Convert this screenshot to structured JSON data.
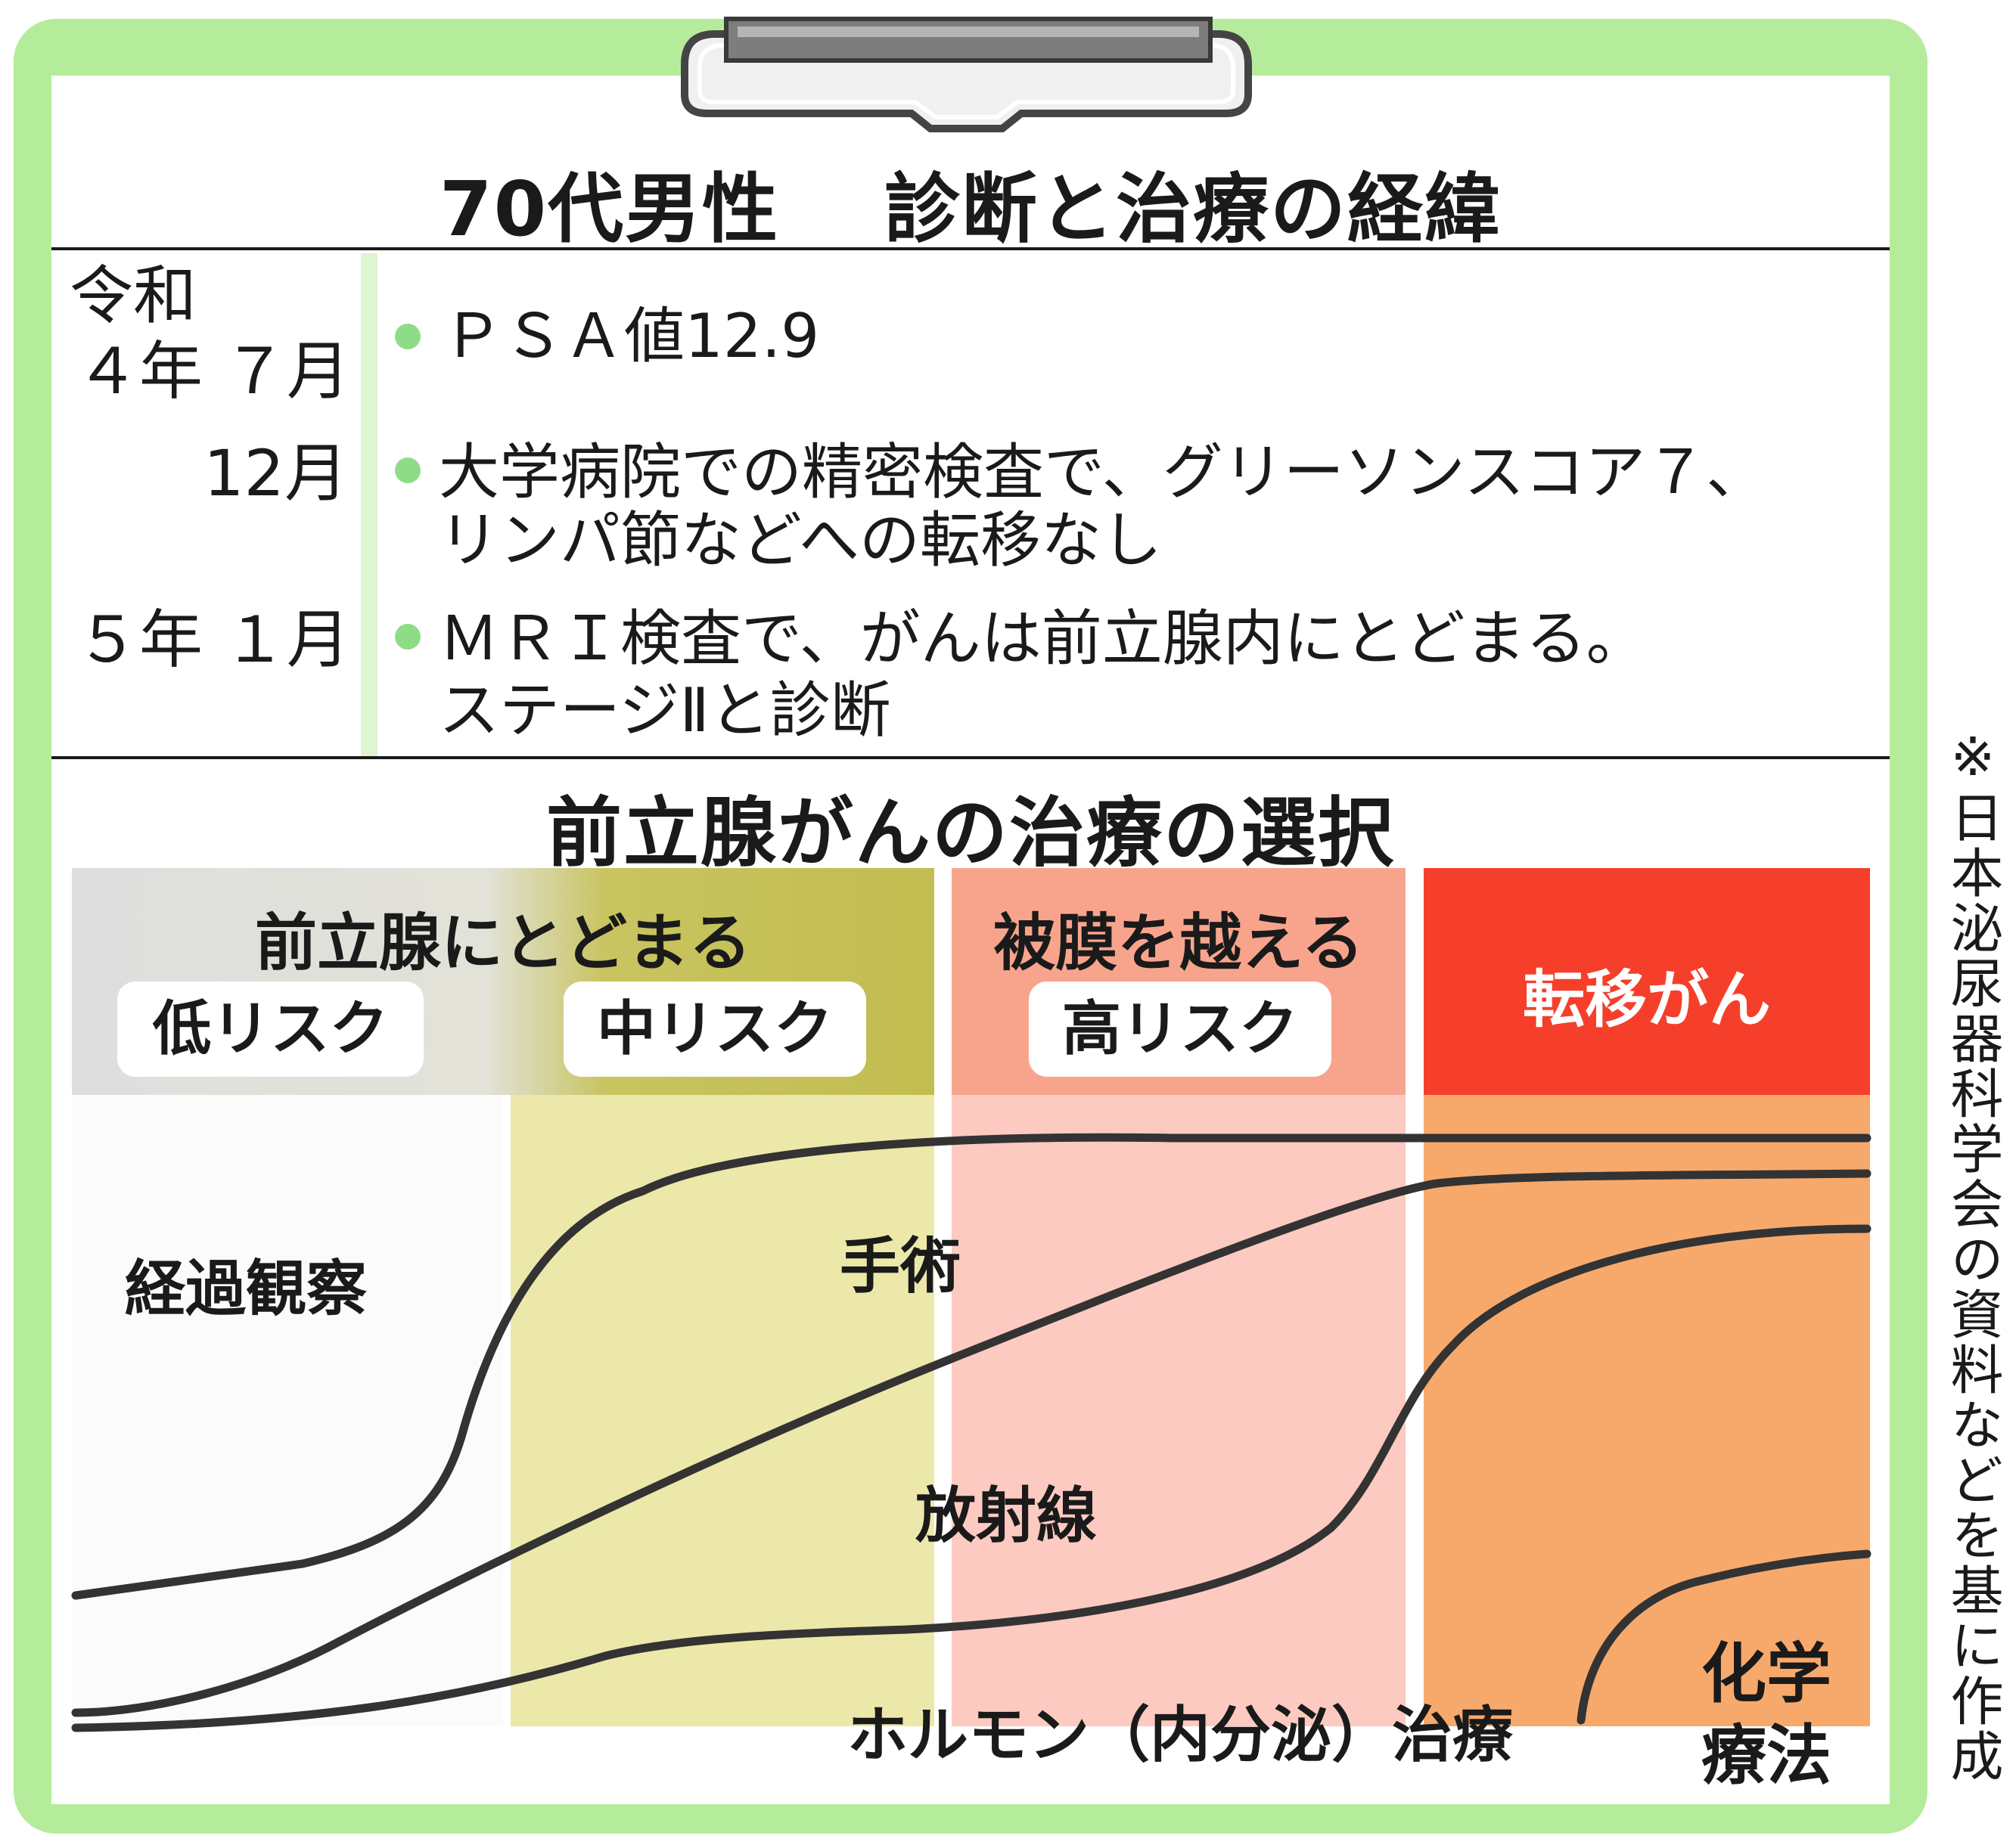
{
  "header": {
    "title": "70代男性　 診断と治療の経緯"
  },
  "timeline": [
    {
      "date_era": "令和",
      "date": "４年 ７月",
      "event_lines": [
        "ＰＳＡ値12.9"
      ]
    },
    {
      "date": "12月",
      "event_lines": [
        "大学病院での精密検査で、グリーソンスコア７、",
        "リンパ節などへの転移なし"
      ]
    },
    {
      "date": "５年 １月",
      "event_lines": [
        "ＭＲＩ検査で、がんは前立腺内にとどまる。",
        "ステージⅡと診断"
      ]
    }
  ],
  "treatment": {
    "title": "前立腺がんの治療の選択",
    "categories": [
      {
        "label": "前立腺にとどまる",
        "color": "#c2bd50"
      },
      {
        "label": "被膜を越える",
        "color": "#f8a48d"
      },
      {
        "label": "転移がん",
        "color": "#f53f2a"
      }
    ],
    "risks": [
      "低リスク",
      "中リスク",
      "高リスク"
    ],
    "labels": {
      "observation": "経過観察",
      "surgery": "手術",
      "radiation": "放射線",
      "hormone": "ホルモン（内分泌）治療",
      "chemo": "化学療法"
    },
    "zone_colors": {
      "observation": "#fbfbfb",
      "middle_risk": "#ece8aa",
      "high_risk": "#fccac0",
      "metastatic": "#f7a96c"
    }
  },
  "note": "※日本泌尿器科学会の資料などを基に作成"
}
